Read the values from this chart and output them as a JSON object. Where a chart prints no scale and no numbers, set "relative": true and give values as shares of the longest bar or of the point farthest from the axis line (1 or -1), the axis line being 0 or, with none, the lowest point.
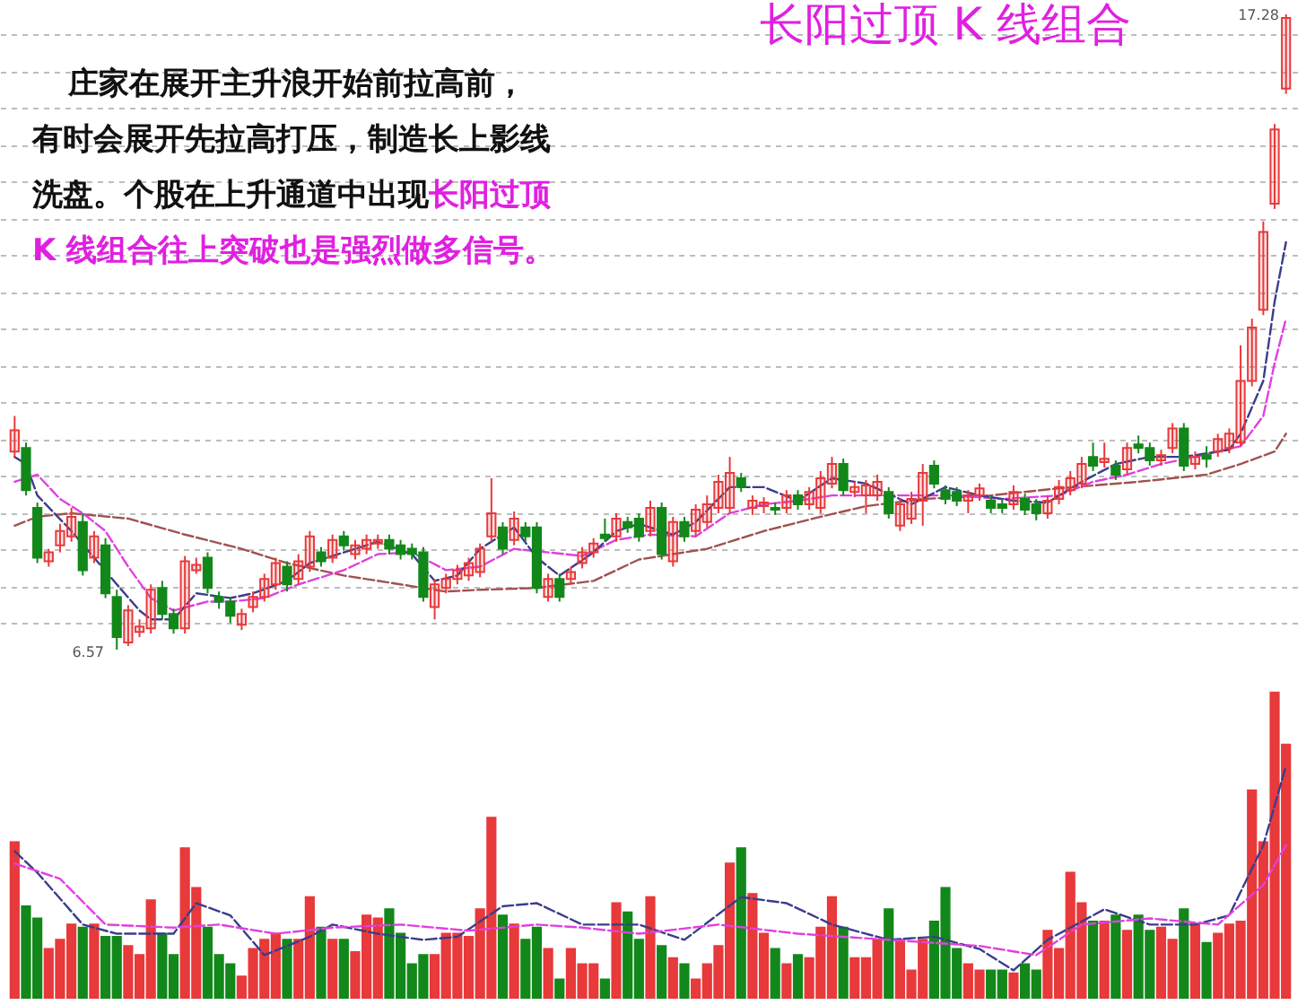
{
  "chart_data": [
    {
      "type": "candlestick",
      "title": "长阳过顶 K 线组合",
      "annotations": [
        "庄家在展开主升浪开始前拉高前，",
        "有时会展开先拉高打压，制造长上影线",
        "洗盘。个股在上升通道中出现",
        "长阳过顶",
        "K 线组合往上突破也是强烈做多信号。",
        "17.28",
        "6.57"
      ],
      "categories": [
        null,
        null,
        null,
        null,
        null,
        null,
        null,
        null,
        null,
        null,
        null,
        null,
        null,
        null,
        null,
        null,
        null,
        null,
        null,
        null,
        null,
        null,
        null,
        null,
        null,
        null,
        null,
        null,
        null,
        null,
        null,
        null,
        null,
        null,
        null,
        null,
        null,
        null,
        null,
        null,
        null,
        null,
        null,
        null,
        null,
        null,
        null,
        null,
        null,
        null,
        null,
        null,
        null,
        null,
        null,
        null,
        null,
        null,
        null,
        null,
        null,
        null,
        null,
        null,
        null,
        null,
        null,
        null,
        null,
        null,
        null,
        null,
        null,
        null,
        null,
        null,
        null,
        null,
        null,
        null,
        null,
        null,
        null,
        null,
        null,
        null,
        null,
        null,
        null,
        null,
        null,
        null,
        null,
        null,
        null,
        null,
        null,
        null,
        null,
        null,
        null,
        null,
        null,
        null,
        null,
        null,
        null,
        null,
        null,
        null,
        null,
        null,
        null
      ],
      "yticks": [
        {
          "value": 7.02,
          "label": null
        },
        {
          "value": 7.64,
          "label": null
        },
        {
          "value": 8.26,
          "label": null
        },
        {
          "value": 8.88,
          "label": null
        },
        {
          "value": 9.5,
          "label": null
        },
        {
          "value": 10.12,
          "label": null
        },
        {
          "value": 10.74,
          "label": null
        },
        {
          "value": 11.36,
          "label": null
        },
        {
          "value": 11.98,
          "label": null
        },
        {
          "value": 12.6,
          "label": null
        },
        {
          "value": 13.22,
          "label": null
        },
        {
          "value": 13.84,
          "label": null
        },
        {
          "value": 14.46,
          "label": null
        },
        {
          "value": 15.08,
          "label": null
        },
        {
          "value": 15.7,
          "label": null
        },
        {
          "value": 16.32,
          "label": null
        },
        {
          "value": 16.94,
          "label": null
        }
      ],
      "grid": "y",
      "tick_labels": false,
      "series": [
        {
          "type": "line",
          "color": "#a0524f",
          "line_style": "dashed",
          "values": [
            8.66,
            null,
            8.81,
            null,
            null,
            8.87,
            null,
            null,
            null,
            null,
            8.78,
            null,
            null,
            null,
            null,
            8.51,
            null,
            null,
            null,
            null,
            8.27,
            null,
            null,
            null,
            8.03,
            null,
            null,
            null,
            null,
            7.82,
            null,
            null,
            null,
            null,
            7.67,
            null,
            null,
            null,
            7.55,
            null,
            null,
            7.58,
            null,
            null,
            null,
            null,
            7.61,
            null,
            null,
            null,
            null,
            7.73,
            null,
            null,
            null,
            8.09,
            null,
            null,
            null,
            null,
            null,
            8.27,
            null,
            null,
            null,
            null,
            8.57,
            null,
            null,
            null,
            null,
            8.81,
            null,
            null,
            null,
            8.99,
            null,
            null,
            null,
            null,
            9.11,
            null,
            null,
            null,
            null,
            null,
            9.17,
            null,
            null,
            null,
            null,
            null,
            9.29,
            null,
            null,
            null,
            null,
            null,
            null,
            9.4,
            null,
            null,
            null,
            null,
            null,
            9.52,
            null,
            null,
            9.7,
            null,
            null,
            9.91,
            10.21
          ]
        },
        {
          "type": "line",
          "color": "#e040e0",
          "line_style": "dashed",
          "values": [
            9.4,
            null,
            9.52,
            null,
            9.11,
            null,
            8.87,
            null,
            8.57,
            null,
            7.97,
            null,
            7.44,
            null,
            7.23,
            null,
            null,
            7.38,
            null,
            7.38,
            null,
            null,
            7.44,
            null,
            null,
            7.67,
            null,
            null,
            null,
            7.91,
            null,
            null,
            8.18,
            null,
            null,
            8.21,
            null,
            null,
            7.91,
            null,
            null,
            7.97,
            null,
            null,
            8.27,
            null,
            null,
            8.21,
            null,
            null,
            8.15,
            null,
            null,
            8.42,
            null,
            null,
            8.51,
            null,
            null,
            null,
            8.48,
            null,
            null,
            8.87,
            null,
            null,
            9.02,
            null,
            null,
            9.08,
            null,
            null,
            9.17,
            null,
            null,
            9.17,
            null,
            null,
            9.17,
            null,
            null,
            null,
            null,
            9.17,
            null,
            null,
            null,
            9.11,
            null,
            null,
            null,
            null,
            9.17,
            null,
            null,
            9.4,
            null,
            null,
            9.52,
            null,
            null,
            9.7,
            null,
            null,
            9.82,
            null,
            null,
            null,
            10.0,
            null,
            10.51,
            11.4,
            12.15
          ]
        },
        {
          "type": "line",
          "color": "#3c3c8c",
          "line_style": "dashed",
          "values": [
            9.82,
            9.7,
            9.17,
            null,
            null,
            8.57,
            null,
            8.12,
            null,
            7.67,
            null,
            7.23,
            7.08,
            null,
            7.08,
            null,
            7.52,
            null,
            null,
            7.44,
            null,
            7.52,
            null,
            null,
            7.73,
            null,
            8.03,
            null,
            null,
            8.21,
            null,
            null,
            8.39,
            null,
            null,
            8.18,
            null,
            7.73,
            null,
            7.82,
            null,
            8.27,
            null,
            null,
            8.63,
            null,
            8.12,
            null,
            7.82,
            null,
            null,
            8.21,
            null,
            8.57,
            null,
            8.69,
            null,
            null,
            8.51,
            null,
            8.72,
            null,
            null,
            9.31,
            null,
            null,
            9.31,
            null,
            null,
            9.08,
            null,
            null,
            9.46,
            null,
            null,
            9.37,
            null,
            null,
            null,
            9.02,
            null,
            null,
            9.31,
            null,
            null,
            9.17,
            null,
            null,
            9.08,
            null,
            null,
            9.05,
            null,
            null,
            9.4,
            null,
            null,
            9.7,
            null,
            null,
            9.82,
            null,
            null,
            9.82,
            null,
            null,
            null,
            9.94,
            10.21,
            null,
            11.1,
            12.44,
            13.44
          ]
        },
        {
          "ohlc": [
            [
              9.91,
              10.51,
              9.82,
              10.27
            ],
            [
              9.97,
              10.06,
              9.17,
              9.26
            ],
            [
              8.96,
              9.05,
              8.03,
              8.12
            ],
            [
              8.06,
              8.27,
              7.97,
              8.21
            ],
            [
              8.33,
              8.69,
              8.21,
              8.57
            ],
            [
              8.48,
              8.96,
              8.39,
              8.81
            ],
            [
              8.72,
              8.87,
              7.82,
              7.91
            ],
            [
              8.12,
              8.57,
              8.03,
              8.48
            ],
            [
              8.33,
              8.45,
              7.44,
              7.52
            ],
            [
              7.46,
              7.58,
              6.57,
              6.78
            ],
            [
              6.69,
              7.32,
              6.63,
              7.23
            ],
            [
              6.87,
              7.08,
              6.78,
              6.96
            ],
            [
              6.93,
              7.67,
              6.84,
              7.58
            ],
            [
              7.61,
              7.73,
              7.08,
              7.17
            ],
            [
              7.17,
              7.26,
              6.84,
              6.93
            ],
            [
              6.93,
              8.15,
              6.84,
              8.06
            ],
            [
              7.91,
              8.12,
              7.85,
              8.0
            ],
            [
              8.12,
              8.21,
              7.52,
              7.61
            ],
            [
              7.46,
              7.55,
              7.26,
              7.38
            ],
            [
              7.38,
              7.46,
              7.02,
              7.14
            ],
            [
              6.99,
              7.26,
              6.9,
              7.17
            ],
            [
              7.29,
              7.55,
              7.2,
              7.46
            ],
            [
              7.46,
              7.85,
              7.38,
              7.76
            ],
            [
              7.67,
              8.12,
              7.58,
              8.03
            ],
            [
              7.97,
              8.06,
              7.55,
              7.67
            ],
            [
              7.76,
              8.18,
              7.67,
              8.06
            ],
            [
              7.97,
              8.57,
              7.88,
              8.48
            ],
            [
              8.21,
              8.3,
              7.97,
              8.06
            ],
            [
              8.12,
              8.51,
              8.03,
              8.42
            ],
            [
              8.48,
              8.57,
              8.24,
              8.33
            ],
            [
              8.18,
              8.42,
              8.09,
              8.33
            ],
            [
              8.27,
              8.51,
              8.18,
              8.42
            ],
            [
              8.36,
              8.51,
              8.27,
              8.42
            ],
            [
              8.42,
              8.51,
              8.18,
              8.27
            ],
            [
              8.33,
              8.42,
              8.09,
              8.18
            ],
            [
              8.27,
              8.36,
              8.09,
              8.18
            ],
            [
              8.21,
              8.3,
              7.38,
              7.46
            ],
            [
              7.29,
              7.76,
              7.08,
              7.67
            ],
            [
              7.61,
              7.85,
              7.52,
              7.76
            ],
            [
              7.76,
              8.0,
              7.67,
              7.91
            ],
            [
              7.82,
              8.12,
              7.73,
              8.03
            ],
            [
              7.88,
              8.36,
              7.79,
              8.27
            ],
            [
              8.48,
              9.46,
              8.39,
              8.87
            ],
            [
              8.63,
              8.72,
              8.18,
              8.27
            ],
            [
              8.42,
              8.9,
              8.33,
              8.78
            ],
            [
              8.63,
              8.72,
              8.39,
              8.48
            ],
            [
              8.63,
              8.72,
              7.52,
              7.61
            ],
            [
              7.46,
              7.85,
              7.38,
              7.76
            ],
            [
              7.76,
              7.85,
              7.38,
              7.46
            ],
            [
              7.76,
              7.97,
              7.67,
              7.88
            ],
            [
              8.03,
              8.3,
              7.94,
              8.21
            ],
            [
              8.21,
              8.45,
              8.12,
              8.36
            ],
            [
              8.51,
              8.78,
              8.39,
              8.45
            ],
            [
              8.48,
              8.87,
              8.39,
              8.78
            ],
            [
              8.72,
              8.81,
              8.54,
              8.63
            ],
            [
              8.78,
              8.87,
              8.39,
              8.48
            ],
            [
              8.57,
              9.08,
              8.48,
              8.96
            ],
            [
              8.96,
              9.05,
              8.09,
              8.18
            ],
            [
              8.06,
              8.81,
              7.97,
              8.72
            ],
            [
              8.72,
              8.81,
              8.39,
              8.48
            ],
            [
              8.57,
              9.02,
              8.48,
              8.93
            ],
            [
              8.72,
              9.17,
              8.63,
              9.02
            ],
            [
              8.96,
              9.52,
              8.87,
              9.4
            ],
            [
              8.96,
              9.82,
              8.87,
              9.55
            ],
            [
              9.46,
              9.55,
              9.23,
              9.31
            ],
            [
              8.96,
              9.17,
              8.84,
              9.08
            ],
            [
              8.99,
              9.14,
              8.87,
              9.05
            ],
            [
              8.96,
              9.05,
              8.84,
              8.93
            ],
            [
              8.96,
              9.26,
              8.87,
              9.17
            ],
            [
              9.17,
              9.26,
              8.93,
              9.02
            ],
            [
              9.02,
              9.31,
              8.93,
              9.23
            ],
            [
              8.96,
              9.58,
              8.87,
              9.46
            ],
            [
              9.37,
              9.82,
              9.29,
              9.7
            ],
            [
              9.7,
              9.79,
              9.17,
              9.26
            ],
            [
              9.23,
              9.4,
              9.14,
              9.31
            ],
            [
              9.17,
              9.43,
              8.87,
              9.34
            ],
            [
              9.17,
              9.52,
              9.08,
              9.4
            ],
            [
              9.23,
              9.31,
              8.78,
              8.87
            ],
            [
              8.66,
              9.11,
              8.57,
              9.02
            ],
            [
              8.78,
              9.23,
              8.69,
              9.11
            ],
            [
              9.08,
              9.7,
              8.66,
              9.55
            ],
            [
              9.67,
              9.76,
              9.29,
              9.37
            ],
            [
              9.26,
              9.34,
              9.02,
              9.11
            ],
            [
              9.23,
              9.31,
              8.99,
              9.08
            ],
            [
              9.08,
              9.26,
              8.87,
              9.17
            ],
            [
              9.17,
              9.37,
              9.08,
              9.29
            ],
            [
              9.08,
              9.17,
              8.87,
              8.96
            ],
            [
              9.02,
              9.11,
              8.87,
              8.96
            ],
            [
              9.02,
              9.34,
              8.93,
              9.23
            ],
            [
              9.11,
              9.2,
              8.84,
              8.93
            ],
            [
              9.02,
              9.11,
              8.75,
              8.87
            ],
            [
              8.87,
              9.17,
              8.78,
              9.08
            ],
            [
              9.11,
              9.43,
              9.02,
              9.31
            ],
            [
              9.26,
              9.58,
              9.17,
              9.46
            ],
            [
              9.37,
              9.82,
              9.29,
              9.7
            ],
            [
              9.82,
              10.06,
              9.58,
              9.67
            ],
            [
              9.73,
              10.06,
              9.64,
              9.79
            ],
            [
              9.67,
              9.76,
              9.43,
              9.52
            ],
            [
              9.61,
              10.06,
              9.52,
              9.97
            ],
            [
              10.03,
              10.18,
              9.88,
              9.97
            ],
            [
              9.97,
              10.06,
              9.67,
              9.76
            ],
            [
              9.76,
              9.94,
              9.67,
              9.85
            ],
            [
              9.97,
              10.39,
              9.88,
              10.3
            ],
            [
              10.3,
              10.39,
              9.58,
              9.67
            ],
            [
              9.7,
              9.91,
              9.61,
              9.82
            ],
            [
              9.85,
              10.0,
              9.64,
              9.79
            ],
            [
              9.91,
              10.21,
              9.82,
              10.12
            ],
            [
              9.97,
              10.3,
              9.88,
              10.21
            ],
            [
              10.06,
              11.7,
              10.0,
              11.1
            ],
            [
              11.1,
              12.15,
              11.01,
              12.0
            ],
            [
              12.3,
              13.79,
              12.21,
              13.61
            ],
            [
              14.09,
              15.43,
              14.0,
              15.34
            ],
            [
              16.03,
              17.28,
              15.94,
              17.22
            ]
          ],
          "colors": [
            "#e8393b",
            "#12881a",
            "#12881a",
            "#e8393b",
            "#e8393b",
            "#e8393b",
            "#12881a",
            "#e8393b",
            "#12881a",
            "#12881a",
            "#e8393b",
            "#e8393b",
            "#e8393b",
            "#12881a",
            "#12881a",
            "#e8393b",
            "#e8393b",
            "#12881a",
            "#12881a",
            "#12881a",
            "#e8393b",
            "#e8393b",
            "#e8393b",
            "#e8393b",
            "#12881a",
            "#e8393b",
            "#e8393b",
            "#12881a",
            "#e8393b",
            "#12881a",
            "#e8393b",
            "#e8393b",
            "#e8393b",
            "#12881a",
            "#12881a",
            "#12881a",
            "#12881a",
            "#e8393b",
            "#e8393b",
            "#e8393b",
            "#e8393b",
            "#e8393b",
            "#e8393b",
            "#12881a",
            "#e8393b",
            "#12881a",
            "#12881a",
            "#e8393b",
            "#12881a",
            "#e8393b",
            "#e8393b",
            "#e8393b",
            "#12881a",
            "#e8393b",
            "#12881a",
            "#12881a",
            "#e8393b",
            "#12881a",
            "#e8393b",
            "#12881a",
            "#e8393b",
            "#e8393b",
            "#e8393b",
            "#e8393b",
            "#12881a",
            "#e8393b",
            "#e8393b",
            "#12881a",
            "#e8393b",
            "#12881a",
            "#e8393b",
            "#e8393b",
            "#e8393b",
            "#12881a",
            "#e8393b",
            "#e8393b",
            "#e8393b",
            "#12881a",
            "#e8393b",
            "#e8393b",
            "#e8393b",
            "#12881a",
            "#12881a",
            "#12881a",
            "#e8393b",
            "#e8393b",
            "#12881a",
            "#12881a",
            "#e8393b",
            "#12881a",
            "#12881a",
            "#e8393b",
            "#e8393b",
            "#e8393b",
            "#e8393b",
            "#12881a",
            "#e8393b",
            "#12881a",
            "#e8393b",
            "#12881a",
            "#12881a",
            "#e8393b",
            "#e8393b",
            "#12881a",
            "#e8393b",
            "#12881a",
            "#e8393b",
            "#e8393b",
            "#e8393b",
            "#e8393b",
            "#e8393b",
            "#e8393b",
            "#e8393b"
          ]
        }
      ]
    },
    {
      "type": "bar",
      "relative": true,
      "tick_labels": false,
      "categories": [
        null,
        null,
        null,
        null,
        null,
        null,
        null,
        null,
        null,
        null,
        null,
        null,
        null,
        null,
        null,
        null,
        null,
        null,
        null,
        null,
        null,
        null,
        null,
        null,
        null,
        null,
        null,
        null,
        null,
        null,
        null,
        null,
        null,
        null,
        null,
        null,
        null,
        null,
        null,
        null,
        null,
        null,
        null,
        null,
        null,
        null,
        null,
        null,
        null,
        null,
        null,
        null,
        null,
        null,
        null,
        null,
        null,
        null,
        null,
        null,
        null,
        null,
        null,
        null,
        null,
        null,
        null,
        null,
        null,
        null,
        null,
        null,
        null,
        null,
        null,
        null,
        null,
        null,
        null,
        null,
        null,
        null,
        null,
        null,
        null,
        null,
        null,
        null,
        null,
        null,
        null,
        null,
        null,
        null,
        null,
        null,
        null,
        null,
        null,
        null,
        null,
        null,
        null,
        null,
        null,
        null,
        null,
        null,
        null,
        null,
        null,
        null,
        null
      ],
      "series": [
        {
          "values": [
            0.51,
            0.3,
            0.26,
            0.16,
            0.19,
            0.24,
            0.23,
            0.24,
            0.2,
            0.2,
            0.17,
            0.14,
            0.32,
            0.21,
            0.14,
            0.49,
            0.36,
            0.23,
            0.14,
            0.11,
            0.07,
            0.16,
            0.19,
            0.21,
            0.19,
            0.19,
            0.33,
            0.23,
            0.19,
            0.19,
            0.15,
            0.27,
            0.26,
            0.29,
            0.21,
            0.11,
            0.14,
            0.14,
            0.21,
            0.21,
            0.2,
            0.29,
            0.59,
            0.27,
            0.24,
            0.19,
            0.23,
            0.16,
            0.06,
            0.16,
            0.11,
            0.11,
            0.06,
            0.31,
            0.28,
            0.19,
            0.33,
            0.17,
            0.13,
            0.11,
            0.06,
            0.11,
            0.17,
            0.44,
            0.49,
            0.34,
            0.21,
            0.16,
            0.11,
            0.14,
            0.13,
            0.23,
            0.33,
            0.23,
            0.13,
            0.13,
            0.19,
            0.29,
            0.19,
            0.09,
            0.19,
            0.25,
            0.36,
            0.16,
            0.11,
            0.09,
            0.09,
            0.09,
            0.08,
            0.11,
            0.09,
            0.22,
            0.16,
            0.41,
            0.31,
            0.25,
            0.25,
            0.27,
            0.22,
            0.27,
            0.22,
            0.23,
            0.19,
            0.29,
            0.24,
            0.18,
            0.21,
            0.24,
            0.25,
            0.68,
            0.51,
            1,
            0.83
          ],
          "colors": [
            "#e8393b",
            "#12881a",
            "#12881a",
            "#e8393b",
            "#e8393b",
            "#e8393b",
            "#12881a",
            "#e8393b",
            "#12881a",
            "#12881a",
            "#e8393b",
            "#e8393b",
            "#e8393b",
            "#12881a",
            "#12881a",
            "#e8393b",
            "#e8393b",
            "#12881a",
            "#12881a",
            "#12881a",
            "#e8393b",
            "#e8393b",
            "#e8393b",
            "#e8393b",
            "#12881a",
            "#e8393b",
            "#e8393b",
            "#12881a",
            "#e8393b",
            "#12881a",
            "#e8393b",
            "#e8393b",
            "#e8393b",
            "#12881a",
            "#12881a",
            "#12881a",
            "#12881a",
            "#e8393b",
            "#e8393b",
            "#e8393b",
            "#e8393b",
            "#e8393b",
            "#e8393b",
            "#12881a",
            "#e8393b",
            "#12881a",
            "#12881a",
            "#e8393b",
            "#12881a",
            "#e8393b",
            "#e8393b",
            "#e8393b",
            "#12881a",
            "#e8393b",
            "#12881a",
            "#12881a",
            "#e8393b",
            "#12881a",
            "#e8393b",
            "#12881a",
            "#e8393b",
            "#e8393b",
            "#e8393b",
            "#e8393b",
            "#12881a",
            "#e8393b",
            "#e8393b",
            "#12881a",
            "#e8393b",
            "#12881a",
            "#e8393b",
            "#e8393b",
            "#e8393b",
            "#12881a",
            "#e8393b",
            "#e8393b",
            "#e8393b",
            "#12881a",
            "#e8393b",
            "#e8393b",
            "#e8393b",
            "#12881a",
            "#12881a",
            "#12881a",
            "#e8393b",
            "#e8393b",
            "#12881a",
            "#12881a",
            "#e8393b",
            "#12881a",
            "#12881a",
            "#e8393b",
            "#e8393b",
            "#e8393b",
            "#e8393b",
            "#12881a",
            "#e8393b",
            "#12881a",
            "#e8393b",
            "#12881a",
            "#12881a",
            "#e8393b",
            "#e8393b",
            "#12881a",
            "#e8393b",
            "#12881a",
            "#e8393b",
            "#e8393b",
            "#e8393b",
            "#e8393b",
            "#e8393b",
            "#e8393b",
            "#e8393b"
          ]
        },
        {
          "type": "line",
          "color": "#3c3c8c",
          "line_style": "dashed",
          "values": [
            0.48,
            null,
            0.41,
            null,
            null,
            null,
            0.24,
            null,
            null,
            0.21,
            null,
            null,
            null,
            null,
            0.21,
            null,
            0.31,
            null,
            null,
            0.27,
            null,
            null,
            0.14,
            null,
            null,
            null,
            0.2,
            null,
            0.24,
            null,
            null,
            null,
            0.21,
            null,
            null,
            null,
            0.19,
            null,
            null,
            0.2,
            null,
            null,
            null,
            0.3,
            null,
            null,
            0.31,
            null,
            null,
            null,
            0.24,
            null,
            null,
            null,
            null,
            0.24,
            null,
            null,
            null,
            0.19,
            null,
            null,
            null,
            null,
            0.33,
            null,
            null,
            null,
            0.31,
            null,
            null,
            null,
            0.24,
            null,
            null,
            null,
            null,
            0.19,
            null,
            null,
            null,
            0.2,
            null,
            null,
            null,
            0.16,
            null,
            null,
            0.09,
            null,
            null,
            0.19,
            null,
            null,
            null,
            null,
            0.29,
            null,
            null,
            null,
            0.24,
            null,
            null,
            null,
            0.24,
            null,
            null,
            0.27,
            null,
            null,
            0.5,
            null,
            0.76
          ]
        },
        {
          "type": "line",
          "color": "#e040e0",
          "line_style": "dashed",
          "values": [
            0.44,
            null,
            null,
            null,
            0.39,
            null,
            null,
            null,
            0.24,
            null,
            null,
            null,
            null,
            null,
            0.23,
            null,
            null,
            null,
            0.24,
            null,
            null,
            null,
            null,
            0.21,
            null,
            null,
            null,
            null,
            0.23,
            null,
            null,
            null,
            null,
            null,
            0.24,
            null,
            null,
            null,
            null,
            null,
            0.22,
            null,
            null,
            null,
            null,
            null,
            0.24,
            null,
            null,
            null,
            0.23,
            null,
            null,
            null,
            null,
            0.21,
            null,
            null,
            null,
            null,
            null,
            null,
            0.24,
            null,
            null,
            null,
            null,
            null,
            null,
            0.21,
            null,
            null,
            null,
            null,
            null,
            null,
            null,
            0.19,
            null,
            null,
            null,
            null,
            null,
            null,
            null,
            0.17,
            null,
            null,
            null,
            null,
            0.14,
            null,
            null,
            null,
            0.24,
            null,
            null,
            null,
            null,
            null,
            0.26,
            null,
            null,
            null,
            null,
            null,
            0.24,
            null,
            null,
            null,
            0.37,
            null,
            0.5
          ]
        }
      ]
    }
  ]
}
